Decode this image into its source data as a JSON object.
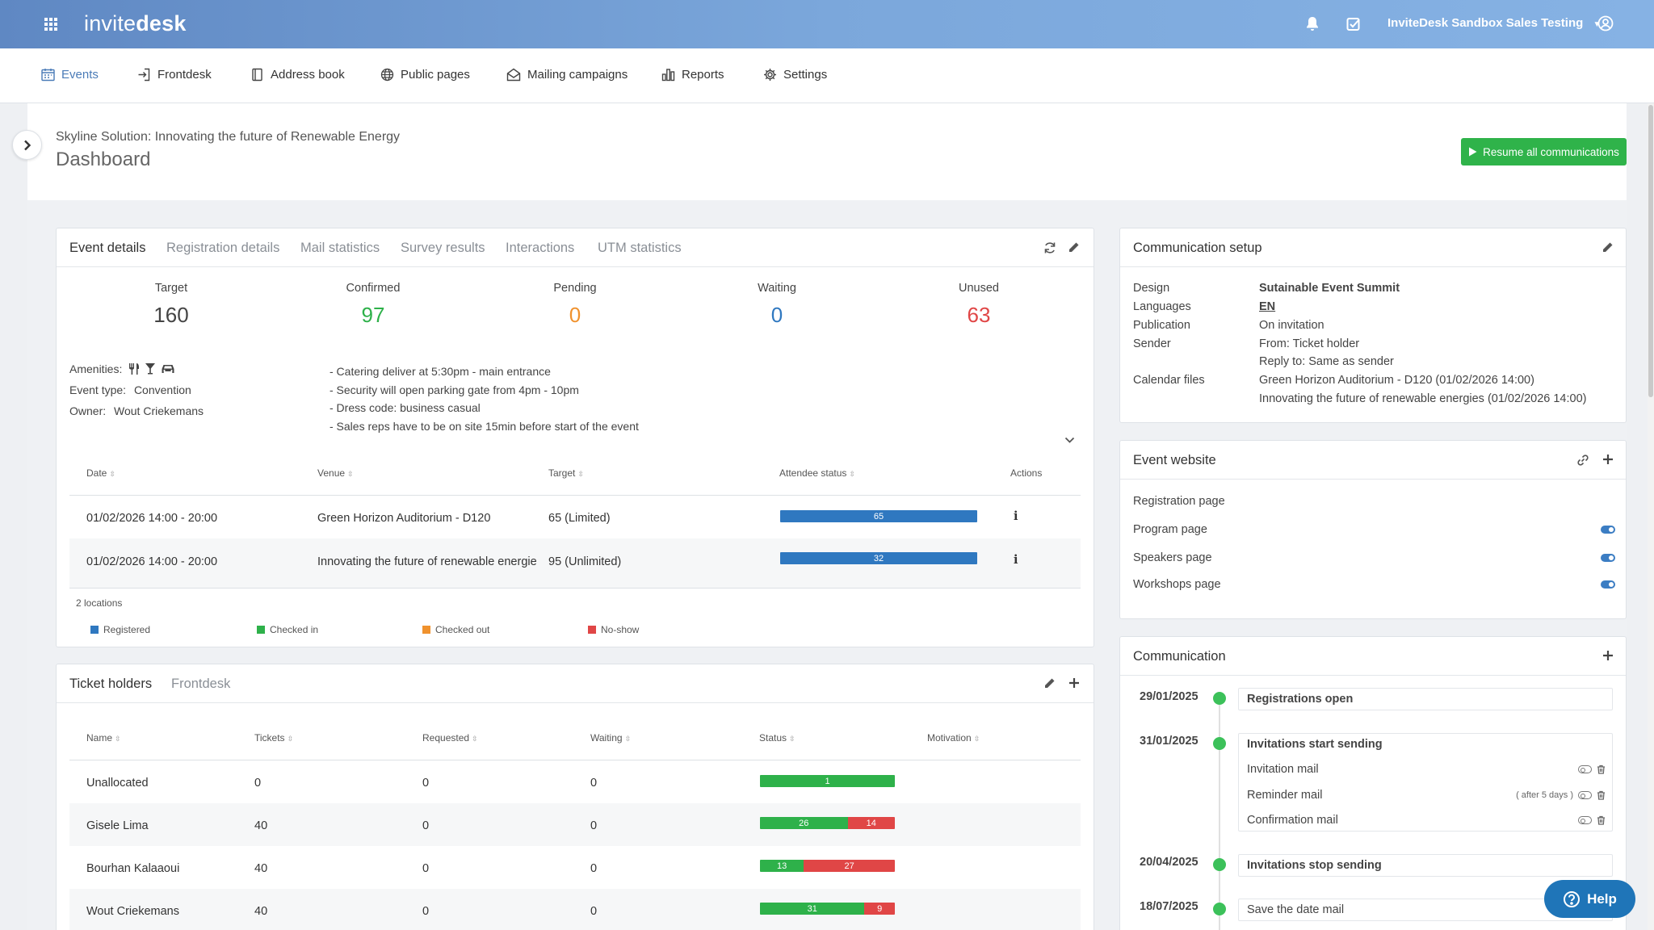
{
  "app": {
    "logo_part1": "invite",
    "logo_part2": "desk",
    "account": "InviteDesk Sandbox Sales Testing"
  },
  "nav": [
    {
      "label": "Events",
      "icon": "calendar-icon",
      "active": true
    },
    {
      "label": "Frontdesk",
      "icon": "sign-in-icon"
    },
    {
      "label": "Address book",
      "icon": "book-icon"
    },
    {
      "label": "Public pages",
      "icon": "globe-icon"
    },
    {
      "label": "Mailing campaigns",
      "icon": "mail-open-icon"
    },
    {
      "label": "Reports",
      "icon": "bar-chart-icon"
    },
    {
      "label": "Settings",
      "icon": "gear-icon"
    }
  ],
  "page": {
    "event_name": "Skyline Solution: Innovating the future of Renewable Energy",
    "title": "Dashboard",
    "resume_label": "Resume all communications"
  },
  "event_card": {
    "tabs": [
      "Event details",
      "Registration details",
      "Mail statistics",
      "Survey results",
      "Interactions",
      "UTM statistics"
    ],
    "stats": [
      {
        "label": "Target",
        "value": "160",
        "color": "#444444"
      },
      {
        "label": "Confirmed",
        "value": "97",
        "color": "#2eb14a"
      },
      {
        "label": "Pending",
        "value": "0",
        "color": "#f0922e"
      },
      {
        "label": "Waiting",
        "value": "0",
        "color": "#2f78c0"
      },
      {
        "label": "Unused",
        "value": "63",
        "color": "#e04646"
      }
    ],
    "amenities_label": "Amenities:",
    "event_type_label": "Event type:",
    "event_type": "Convention",
    "owner_label": "Owner:",
    "owner": "Wout Criekemans",
    "notes": [
      "- Catering deliver at 5:30pm - main entrance",
      "- Security will open parking gate from 4pm - 10pm",
      "- Dress code: business casual",
      "- Sales reps have to be on site 15min before start of the event"
    ],
    "columns": [
      "Date",
      "Venue",
      "Target",
      "Attendee status",
      "Actions"
    ],
    "rows": [
      {
        "date": "01/02/2026 14:00 - 20:00",
        "venue": "Green Horizon Auditorium - D120",
        "target": "65 (Limited)",
        "registered": 65
      },
      {
        "date": "01/02/2026 14:00 - 20:00",
        "venue": "Innovating the future of renewable energie",
        "target": "95 (Unlimited)",
        "registered": 32
      }
    ],
    "locations": "2 locations",
    "legend": [
      {
        "label": "Registered",
        "color": "#2f78c0"
      },
      {
        "label": "Checked in",
        "color": "#2eb14a"
      },
      {
        "label": "Checked out",
        "color": "#f0922e"
      },
      {
        "label": "No-show",
        "color": "#e04646"
      }
    ]
  },
  "tickets_card": {
    "tabs": [
      "Ticket holders",
      "Frontdesk"
    ],
    "columns": [
      "Name",
      "Tickets",
      "Requested",
      "Waiting",
      "Status",
      "Motivation"
    ],
    "rows": [
      {
        "name": "Unallocated",
        "tickets": "0",
        "requested": "0",
        "waiting": "0",
        "green": 1,
        "red": 0
      },
      {
        "name": "Gisele Lima",
        "tickets": "40",
        "requested": "0",
        "waiting": "0",
        "green": 26,
        "red": 14
      },
      {
        "name": "Bourhan Kalaaoui",
        "tickets": "40",
        "requested": "0",
        "waiting": "0",
        "green": 13,
        "red": 27
      },
      {
        "name": "Wout Criekemans",
        "tickets": "40",
        "requested": "0",
        "waiting": "0",
        "green": 31,
        "red": 9
      }
    ]
  },
  "comm_setup": {
    "title": "Communication setup",
    "design_label": "Design",
    "design": "Sutainable Event Summit",
    "languages_label": "Languages",
    "languages": "EN",
    "publication_label": "Publication",
    "publication": "On invitation",
    "sender_label": "Sender",
    "sender_from": "From: Ticket holder",
    "sender_reply": "Reply to: Same as sender",
    "calendar_label": "Calendar files",
    "calendar_1": "Green Horizon Auditorium - D120 (01/02/2026 14:00)",
    "calendar_2": "Innovating the future of renewable energies (01/02/2026 14:00)"
  },
  "website": {
    "title": "Event website",
    "pages": [
      {
        "label": "Registration page",
        "on": false
      },
      {
        "label": "Program page",
        "on": true
      },
      {
        "label": "Speakers page",
        "on": true
      },
      {
        "label": "Workshops page",
        "on": true
      }
    ]
  },
  "communication": {
    "title": "Communication",
    "items": [
      {
        "date": "29/01/2025",
        "title": "Registrations open"
      },
      {
        "date": "31/01/2025",
        "title": "Invitations start sending",
        "mails": [
          {
            "label": "Invitation mail",
            "note": ""
          },
          {
            "label": "Reminder mail",
            "note": "( after 5 days )"
          },
          {
            "label": "Confirmation mail",
            "note": ""
          }
        ]
      },
      {
        "date": "20/04/2025",
        "title": "Invitations stop sending"
      },
      {
        "date": "18/07/2025",
        "title": "Save the date mail"
      }
    ]
  },
  "help": {
    "label": "Help"
  }
}
